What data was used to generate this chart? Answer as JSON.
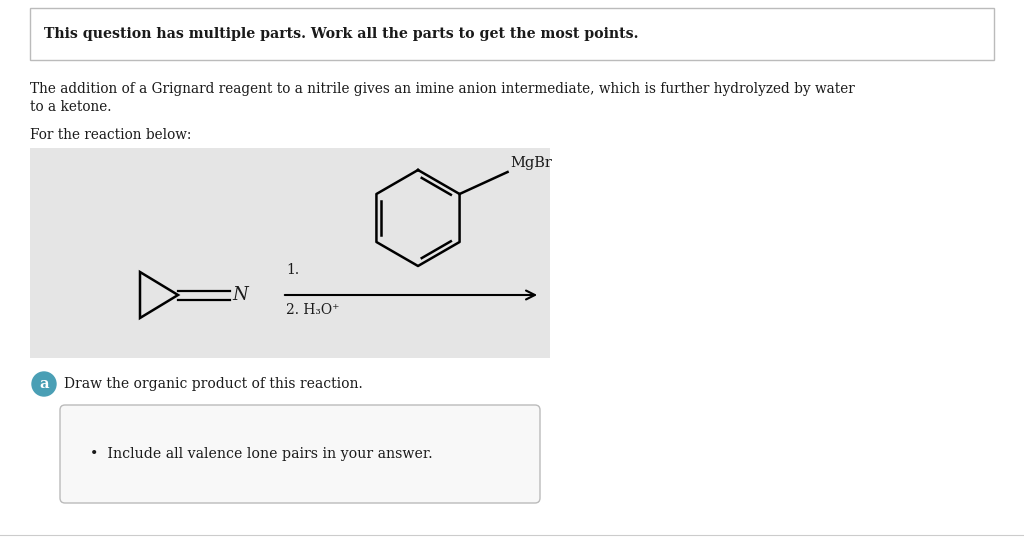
{
  "bg_color": "#ffffff",
  "white": "#ffffff",
  "border_color": "#bbbbbb",
  "teal_color": "#4a9fb5",
  "header_text": "This question has multiple parts. Work all the parts to get the most points.",
  "body_text_line1": "The addition of a Grignard reagent to a nitrile gives an imine anion intermediate, which is further hydrolyzed by water",
  "body_text_line2": "to a ketone.",
  "for_reaction_text": "For the reaction below:",
  "reagent1_text": "1.",
  "reagent2_text": "2. H₃O⁺",
  "mgbr_text": "MgBr",
  "part_a_text": "Draw the organic product of this reaction.",
  "bullet_text": "Include all valence lone pairs in your answer.",
  "text_color": "#1a1a1a",
  "gray_box_color": "#e5e5e5",
  "answer_box_color": "#f8f8f8",
  "figsize": [
    10.24,
    5.45
  ],
  "dpi": 100
}
